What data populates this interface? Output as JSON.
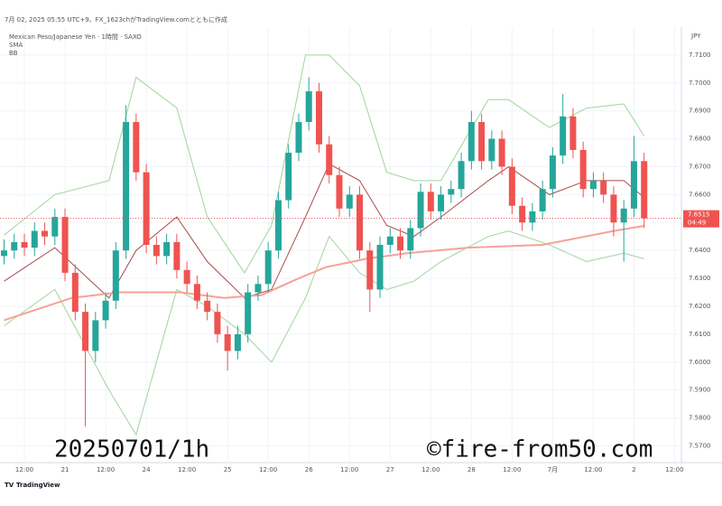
{
  "chart_data": {
    "type": "candlestick",
    "header": "7月 02, 2025 05:55 UTC+9、FX_1623chがTradingView.comとともに作成",
    "title": "Mexican Peso/Japanese Yen · 1時間 · SAXO",
    "indicators": [
      "SMA",
      "BB"
    ],
    "currency": "JPY",
    "last_price": 7.6515,
    "countdown": "04:49",
    "watermark": "20250701/1h",
    "copyright": "©fire-from50.com",
    "footer": "TradingView",
    "up_color": "#26a69a",
    "down_color": "#ef5350",
    "ylim": [
      7.564,
      7.72
    ],
    "yticks": [
      {
        "value": 7.57,
        "label": "7.5700"
      },
      {
        "value": 7.58,
        "label": "7.5800"
      },
      {
        "value": 7.59,
        "label": "7.5900"
      },
      {
        "value": 7.6,
        "label": "7.6000"
      },
      {
        "value": 7.61,
        "label": "7.6100"
      },
      {
        "value": 7.62,
        "label": "7.6200"
      },
      {
        "value": 7.63,
        "label": "7.6300"
      },
      {
        "value": 7.64,
        "label": "7.6400"
      },
      {
        "value": 7.65,
        "label": "7.6500"
      },
      {
        "value": 7.66,
        "label": "7.6600"
      },
      {
        "value": 7.67,
        "label": "7.6700"
      },
      {
        "value": 7.68,
        "label": "7.6800"
      },
      {
        "value": 7.69,
        "label": "7.6900"
      },
      {
        "value": 7.7,
        "label": "7.7000"
      },
      {
        "value": 7.71,
        "label": "7.7100"
      }
    ],
    "xlim": [
      4.8,
      206
    ],
    "xticks": [
      {
        "value": 12,
        "label": "12:00"
      },
      {
        "value": 24,
        "label": "21"
      },
      {
        "value": 36,
        "label": "12:00"
      },
      {
        "value": 48,
        "label": "24"
      },
      {
        "value": 60,
        "label": "12:00"
      },
      {
        "value": 72,
        "label": "25"
      },
      {
        "value": 84,
        "label": "12:00"
      },
      {
        "value": 96,
        "label": "26"
      },
      {
        "value": 108,
        "label": "12:00"
      },
      {
        "value": 120,
        "label": "27"
      },
      {
        "value": 132,
        "label": "12:00"
      },
      {
        "value": 144,
        "label": "28"
      },
      {
        "value": 156,
        "label": "12:00"
      },
      {
        "value": 168,
        "label": "7月"
      },
      {
        "value": 180,
        "label": "12:00"
      },
      {
        "value": 192,
        "label": "2"
      },
      {
        "value": 204,
        "label": "12:00"
      }
    ],
    "x": [
      6,
      9,
      12,
      15,
      18,
      21,
      24,
      27,
      30,
      33,
      36,
      39,
      42,
      45,
      48,
      51,
      54,
      57,
      60,
      63,
      66,
      69,
      72,
      75,
      78,
      81,
      84,
      87,
      90,
      93,
      96,
      99,
      102,
      105,
      108,
      111,
      114,
      117,
      120,
      123,
      126,
      129,
      132,
      135,
      138,
      141,
      144,
      147,
      150,
      153,
      156,
      159,
      162,
      165,
      168,
      171,
      174,
      177,
      180,
      183,
      186,
      189,
      192,
      195
    ],
    "ohlc": [
      [
        7.638,
        7.644,
        7.635,
        7.64
      ],
      [
        7.64,
        7.646,
        7.637,
        7.643
      ],
      [
        7.643,
        7.646,
        7.638,
        7.641
      ],
      [
        7.641,
        7.65,
        7.638,
        7.647
      ],
      [
        7.647,
        7.65,
        7.642,
        7.645
      ],
      [
        7.645,
        7.655,
        7.642,
        7.652
      ],
      [
        7.652,
        7.655,
        7.629,
        7.632
      ],
      [
        7.632,
        7.635,
        7.615,
        7.618
      ],
      [
        7.618,
        7.621,
        7.577,
        7.604
      ],
      [
        7.604,
        7.618,
        7.6,
        7.615
      ],
      [
        7.615,
        7.625,
        7.612,
        7.622
      ],
      [
        7.622,
        7.643,
        7.619,
        7.64
      ],
      [
        7.64,
        7.692,
        7.637,
        7.686
      ],
      [
        7.686,
        7.689,
        7.665,
        7.668
      ],
      [
        7.668,
        7.671,
        7.639,
        7.642
      ],
      [
        7.642,
        7.645,
        7.635,
        7.638
      ],
      [
        7.638,
        7.646,
        7.635,
        7.643
      ],
      [
        7.643,
        7.646,
        7.63,
        7.633
      ],
      [
        7.633,
        7.636,
        7.625,
        7.628
      ],
      [
        7.628,
        7.631,
        7.619,
        7.622
      ],
      [
        7.622,
        7.625,
        7.615,
        7.618
      ],
      [
        7.618,
        7.621,
        7.607,
        7.61
      ],
      [
        7.61,
        7.613,
        7.597,
        7.604
      ],
      [
        7.604,
        7.613,
        7.601,
        7.61
      ],
      [
        7.61,
        7.628,
        7.607,
        7.625
      ],
      [
        7.625,
        7.631,
        7.622,
        7.628
      ],
      [
        7.628,
        7.643,
        7.625,
        7.64
      ],
      [
        7.64,
        7.661,
        7.637,
        7.658
      ],
      [
        7.658,
        7.678,
        7.655,
        7.675
      ],
      [
        7.675,
        7.689,
        7.672,
        7.686
      ],
      [
        7.686,
        7.702,
        7.683,
        7.697
      ],
      [
        7.697,
        7.7,
        7.675,
        7.678
      ],
      [
        7.678,
        7.681,
        7.664,
        7.667
      ],
      [
        7.667,
        7.67,
        7.652,
        7.655
      ],
      [
        7.655,
        7.663,
        7.652,
        7.66
      ],
      [
        7.66,
        7.663,
        7.637,
        7.64
      ],
      [
        7.64,
        7.643,
        7.618,
        7.626
      ],
      [
        7.626,
        7.645,
        7.623,
        7.642
      ],
      [
        7.642,
        7.648,
        7.639,
        7.645
      ],
      [
        7.645,
        7.648,
        7.637,
        7.64
      ],
      [
        7.64,
        7.651,
        7.637,
        7.648
      ],
      [
        7.648,
        7.664,
        7.645,
        7.661
      ],
      [
        7.661,
        7.664,
        7.651,
        7.654
      ],
      [
        7.654,
        7.663,
        7.651,
        7.66
      ],
      [
        7.66,
        7.665,
        7.657,
        7.662
      ],
      [
        7.662,
        7.675,
        7.659,
        7.672
      ],
      [
        7.672,
        7.69,
        7.669,
        7.686
      ],
      [
        7.686,
        7.689,
        7.669,
        7.672
      ],
      [
        7.672,
        7.683,
        7.669,
        7.68
      ],
      [
        7.68,
        7.683,
        7.667,
        7.67
      ],
      [
        7.67,
        7.673,
        7.653,
        7.656
      ],
      [
        7.656,
        7.659,
        7.647,
        7.65
      ],
      [
        7.65,
        7.657,
        7.647,
        7.654
      ],
      [
        7.654,
        7.665,
        7.651,
        7.662
      ],
      [
        7.662,
        7.677,
        7.659,
        7.674
      ],
      [
        7.674,
        7.696,
        7.671,
        7.688
      ],
      [
        7.688,
        7.691,
        7.673,
        7.676
      ],
      [
        7.676,
        7.679,
        7.659,
        7.662
      ],
      [
        7.662,
        7.668,
        7.659,
        7.665
      ],
      [
        7.665,
        7.668,
        7.657,
        7.66
      ],
      [
        7.66,
        7.663,
        7.645,
        7.65
      ],
      [
        7.65,
        7.658,
        7.636,
        7.655
      ],
      [
        7.655,
        7.681,
        7.652,
        7.672
      ],
      [
        7.672,
        7.675,
        7.648,
        7.6515
      ]
    ],
    "sma": {
      "color": "#f7a199",
      "x": [
        6,
        16,
        26,
        40,
        58,
        71,
        82,
        93,
        101,
        113,
        125,
        143,
        165,
        186,
        195
      ],
      "values": [
        7.615,
        7.619,
        7.623,
        7.625,
        7.625,
        7.623,
        7.624,
        7.63,
        7.634,
        7.637,
        7.639,
        7.641,
        7.642,
        7.647,
        7.6488
      ]
    },
    "bb": {
      "band_color": "#9fd59b",
      "basis_color": "#a84a4a",
      "x": [
        6,
        21,
        37,
        45,
        57,
        66,
        77,
        85,
        95,
        102,
        111,
        119,
        127,
        135,
        149,
        155,
        167,
        178,
        189,
        195
      ],
      "upper": [
        7.6455,
        7.66,
        7.665,
        7.702,
        7.691,
        7.652,
        7.632,
        7.649,
        7.71,
        7.71,
        7.699,
        7.668,
        7.665,
        7.665,
        7.694,
        7.694,
        7.684,
        7.691,
        7.6925,
        7.681
      ],
      "middle": [
        7.629,
        7.641,
        7.623,
        7.64,
        7.652,
        7.636,
        7.623,
        7.626,
        7.652,
        7.671,
        7.665,
        7.649,
        7.645,
        7.652,
        7.665,
        7.67,
        7.66,
        7.665,
        7.665,
        7.659
      ],
      "lower": [
        7.613,
        7.626,
        7.59,
        7.574,
        7.626,
        7.62,
        7.61,
        7.6,
        7.623,
        7.645,
        7.632,
        7.626,
        7.629,
        7.636,
        7.645,
        7.647,
        7.642,
        7.636,
        7.639,
        7.637
      ]
    }
  }
}
